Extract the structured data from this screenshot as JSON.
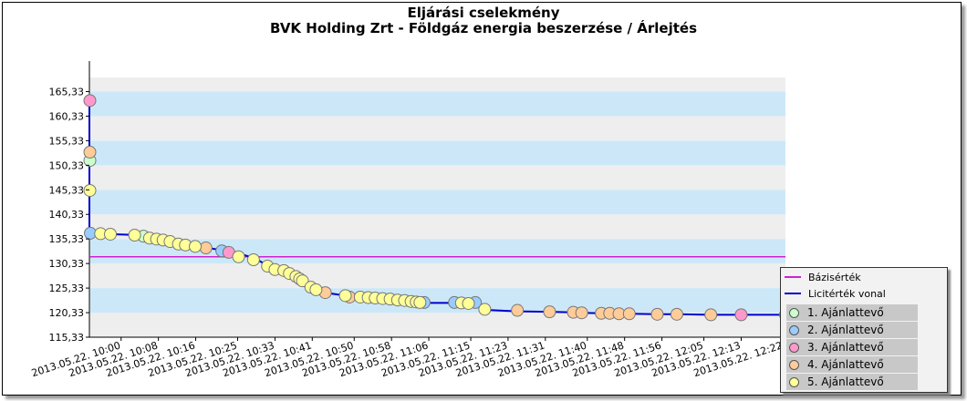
{
  "chart_data": {
    "type": "line",
    "title": "Eljárási cselekmény",
    "subtitle": "BVK Holding Zrt - Földgáz energia beszerzése / Árlejtés",
    "y_tick_labels": [
      "115,33",
      "120,33",
      "125,33",
      "130,33",
      "135,33",
      "140,33",
      "145,33",
      "150,33",
      "155,33",
      "160,33",
      "165,33"
    ],
    "y_ticks": [
      115.33,
      120.33,
      125.33,
      130.33,
      135.33,
      140.33,
      145.33,
      150.33,
      155.33,
      160.33,
      165.33
    ],
    "ylim": [
      115.33,
      168.2
    ],
    "x_tick_labels": [
      "2013.05.22. 10:00",
      "2013.05.22. 10:08",
      "2013.05.22. 10:16",
      "2013.05.22. 10:25",
      "2013.05.22. 10:33",
      "2013.05.22. 10:41",
      "2013.05.22. 10:50",
      "2013.05.22. 10:58",
      "2013.05.22. 11:06",
      "2013.05.22. 11:15",
      "2013.05.22. 11:23",
      "2013.05.22. 11:31",
      "2013.05.22. 11:40",
      "2013.05.22. 11:48",
      "2013.05.22. 11:56",
      "2013.05.22. 12:05",
      "2013.05.22. 12:13",
      "2013.05.22. 12:22"
    ],
    "x_ticks_min": [
      0,
      8,
      16,
      25,
      33,
      41,
      50,
      58,
      66,
      75,
      83,
      91,
      100,
      108,
      116,
      125,
      133,
      142
    ],
    "xlim_min": [
      -6.8,
      142.5
    ],
    "grid": true,
    "legend_position": "bottom-right",
    "baseline": {
      "name": "Bázisérték",
      "value": 131.7,
      "color": "#d020d0"
    },
    "bid_line": {
      "name": "Licitérték vonal",
      "color": "#0000cc",
      "x_min": [
        -6.8,
        -6.8,
        -6.8,
        -6.8,
        -6.8,
        -6.6,
        -4.5,
        -2.5,
        1.2,
        3.8,
        5.5,
        7.0,
        8.5,
        10.0,
        11.8,
        13.7,
        15.8,
        17.9,
        19.3,
        21.3,
        23.0,
        24.4,
        26.2,
        28.3,
        29.8,
        31.6,
        33.0,
        34.8,
        36.2,
        37.5,
        38.3,
        38.9,
        39.3,
        39.7,
        40.5,
        41.6,
        43.0,
        46.6,
        48.1,
        49.7,
        51.3,
        53.0,
        54.5,
        56.1,
        57.7,
        59.3,
        60.8,
        62.2,
        63.3,
        64.1,
        65.0,
        71.5,
        73.0,
        74.5,
        76.0,
        78.0,
        85.0,
        91.9,
        97.0,
        98.8,
        103.0,
        104.8,
        106.8,
        109.0,
        115.0,
        119.2,
        126.5,
        133.0,
        142.5
      ],
      "y": [
        163.5,
        153.0,
        151.3,
        145.2,
        136.8,
        136.5,
        136.4,
        136.3,
        136.2,
        136.1,
        135.7,
        135.5,
        135.3,
        135.1,
        134.8,
        134.3,
        133.9,
        133.6,
        133.4,
        133.1,
        132.8,
        132.5,
        132.1,
        131.5,
        130.8,
        129.8,
        129.1,
        128.9,
        128.1,
        127.7,
        127.2,
        126.8,
        125.7,
        125.5,
        125.2,
        124.8,
        124.5,
        124.0,
        123.8,
        123.6,
        123.5,
        123.4,
        123.3,
        123.2,
        123.1,
        122.9,
        122.8,
        122.6,
        122.5,
        122.4,
        122.3,
        122.3,
        122.3,
        122.2,
        122.1,
        120.9,
        120.6,
        120.5,
        120.4,
        120.3,
        120.2,
        120.2,
        120.1,
        120.1,
        120.0,
        120.0,
        119.9,
        119.9,
        119.9
      ]
    },
    "series": [
      {
        "name": "1. Ajánlattevő",
        "color": "#ccffcc",
        "x_min": [
          -6.7,
          4.8
        ],
        "y": [
          151.3,
          135.9
        ]
      },
      {
        "name": "2. Ajánlattevő",
        "color": "#99ccff",
        "x_min": [
          -6.6,
          21.6,
          65.0,
          71.5,
          76.0
        ],
        "y": [
          136.5,
          132.9,
          122.4,
          122.4,
          122.4
        ]
      },
      {
        "name": "3. Ajánlattevő",
        "color": "#ff99cc",
        "x_min": [
          -6.7,
          23.1,
          133.0
        ],
        "y": [
          163.5,
          132.6,
          119.9
        ]
      },
      {
        "name": "4. Ajánlattevő",
        "color": "#ffcc99",
        "x_min": [
          -6.7,
          18.2,
          43.8,
          49.0,
          85.0,
          91.9,
          97.0,
          98.8,
          103.0,
          104.8,
          106.8,
          109.0,
          115.0,
          119.2,
          126.5,
          142.5
        ],
        "y": [
          153.0,
          133.5,
          124.4,
          123.5,
          120.8,
          120.5,
          120.4,
          120.3,
          120.2,
          120.2,
          120.1,
          120.1,
          120.0,
          120.0,
          119.9,
          119.9
        ]
      },
      {
        "name": "5. Ajánlattevő",
        "color": "#ffff99",
        "x_min": [
          -6.7,
          -4.4,
          -2.3,
          2.9,
          6.1,
          7.6,
          9.0,
          10.5,
          12.3,
          13.8,
          15.9,
          25.2,
          28.4,
          31.4,
          33.0,
          34.9,
          36.1,
          37.5,
          38.3,
          38.9,
          40.7,
          41.8,
          48.1,
          51.3,
          53.0,
          54.5,
          56.1,
          57.7,
          59.3,
          60.8,
          62.2,
          63.3,
          64.1,
          73.0,
          74.5,
          78.0
        ],
        "y": [
          145.2,
          136.4,
          136.3,
          136.1,
          135.5,
          135.3,
          135.1,
          134.8,
          134.3,
          134.1,
          133.8,
          131.7,
          131.1,
          129.8,
          129.1,
          128.9,
          128.3,
          127.7,
          127.2,
          126.8,
          125.5,
          125.0,
          123.8,
          123.5,
          123.4,
          123.3,
          123.2,
          123.1,
          122.9,
          122.8,
          122.6,
          122.5,
          122.4,
          122.3,
          122.2,
          121.0
        ]
      }
    ]
  }
}
